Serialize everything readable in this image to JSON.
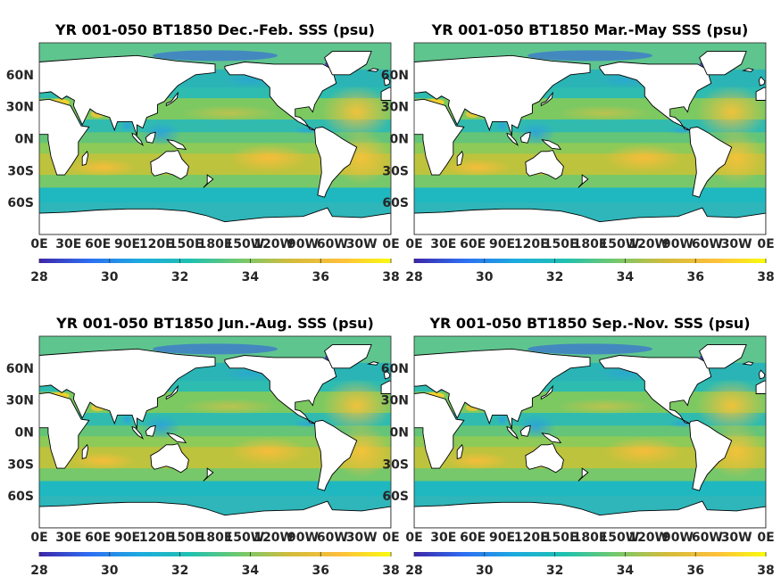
{
  "chart_data": [
    {
      "type": "heatmap",
      "title": "YR 001-050 BT1850 Dec.-Feb. SSS (psu)",
      "x_ticks": [
        "0E",
        "30E",
        "60E",
        "90E",
        "120E",
        "150E",
        "180E",
        "150W",
        "120W",
        "90W",
        "60W",
        "30W",
        "0E"
      ],
      "y_ticks": [
        "60N",
        "30N",
        "0N",
        "30S",
        "60S"
      ],
      "colorbar": {
        "min": 28,
        "max": 38,
        "ticks": [
          28,
          30,
          32,
          34,
          36,
          38
        ]
      }
    },
    {
      "type": "heatmap",
      "title": "YR 001-050 BT1850 Mar.-May SSS (psu)",
      "x_ticks": [
        "0E",
        "30E",
        "60E",
        "90E",
        "120E",
        "150E",
        "180E",
        "150W",
        "120W",
        "90W",
        "60W",
        "30W",
        "0E"
      ],
      "y_ticks": [
        "60N",
        "30N",
        "0N",
        "30S",
        "60S"
      ],
      "colorbar": {
        "min": 28,
        "max": 38,
        "ticks": [
          28,
          30,
          32,
          34,
          36,
          38
        ]
      }
    },
    {
      "type": "heatmap",
      "title": "YR 001-050 BT1850 Jun.-Aug. SSS (psu)",
      "x_ticks": [
        "0E",
        "30E",
        "60E",
        "90E",
        "120E",
        "150E",
        "180E",
        "150W",
        "120W",
        "90W",
        "60W",
        "30W",
        "0E"
      ],
      "y_ticks": [
        "60N",
        "30N",
        "0N",
        "30S",
        "60S"
      ],
      "colorbar": {
        "min": 28,
        "max": 38,
        "ticks": [
          28,
          30,
          32,
          34,
          36,
          38
        ]
      }
    },
    {
      "type": "heatmap",
      "title": "YR 001-050 BT1850 Sep.-Nov. SSS (psu)",
      "x_ticks": [
        "0E",
        "30E",
        "60E",
        "90E",
        "120E",
        "150E",
        "180E",
        "150W",
        "120W",
        "90W",
        "60W",
        "30W",
        "0E"
      ],
      "y_ticks": [
        "60N",
        "30N",
        "0N",
        "30S",
        "60S"
      ],
      "colorbar": {
        "min": 28,
        "max": 38,
        "ticks": [
          28,
          30,
          32,
          34,
          36,
          38
        ]
      }
    }
  ],
  "colormap": [
    "#3e26a8",
    "#2d6ff2",
    "#1caadf",
    "#1ec1b0",
    "#72c96d",
    "#d3bc3b",
    "#fdbf3b",
    "#f9fb0e"
  ]
}
